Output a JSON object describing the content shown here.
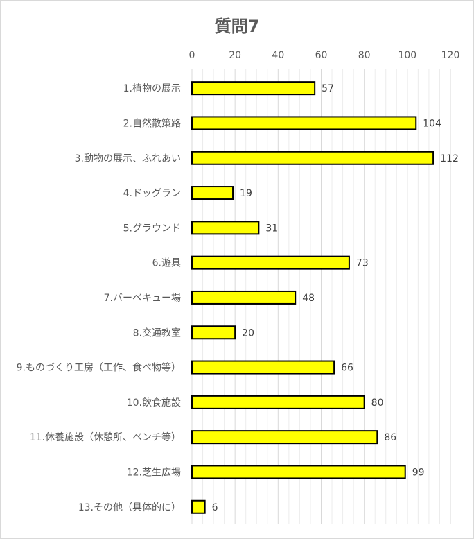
{
  "chart_data": {
    "type": "bar",
    "orientation": "horizontal",
    "title": "質問7",
    "xlabel": "",
    "ylabel": "",
    "categories": [
      "1.植物の展示",
      "2.自然散策路",
      "3.動物の展示、ふれあい",
      "4.ドッグラン",
      "5.グラウンド",
      "6.遊具",
      "7.バーベキュー場",
      "8.交通教室",
      "9.ものづくり工房（工作、食べ物等）",
      "10.飲食施設",
      "11.休養施設（休憩所、ベンチ等）",
      "12.芝生広場",
      "13.その他（具体的に）"
    ],
    "values": [
      57,
      104,
      112,
      19,
      31,
      73,
      48,
      20,
      66,
      80,
      86,
      99,
      6
    ],
    "xlim": [
      0,
      120
    ],
    "xticks": [
      0,
      20,
      40,
      60,
      80,
      100,
      120
    ],
    "axis_position": "top",
    "grid": true,
    "legend": "none",
    "bar_color": "#ffff00",
    "bar_edge_color": "#000000"
  }
}
